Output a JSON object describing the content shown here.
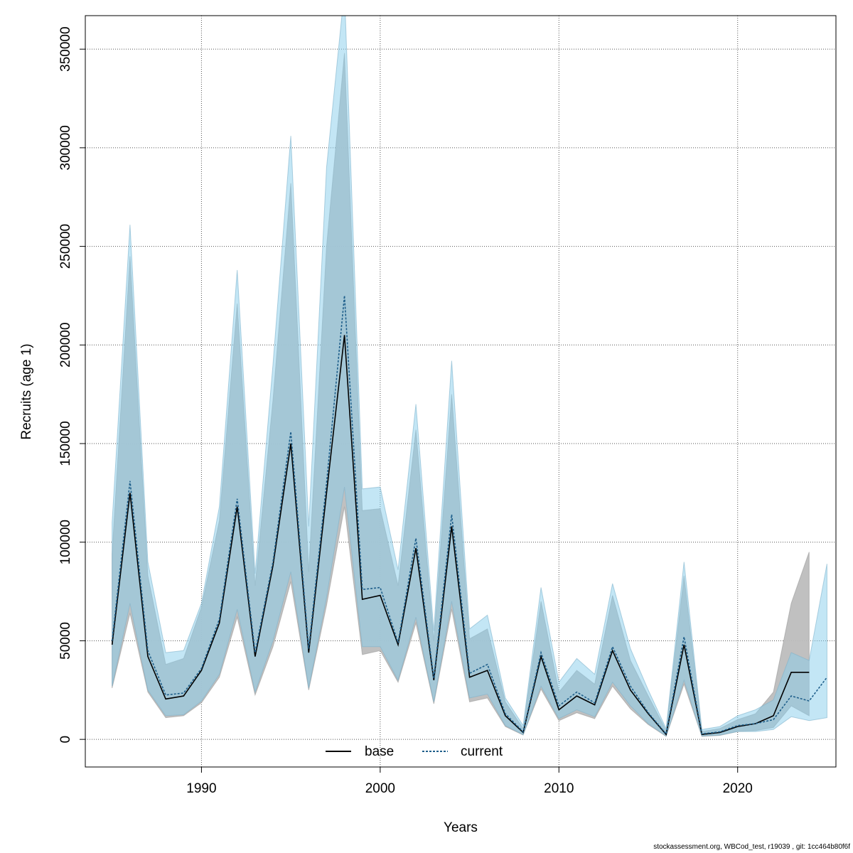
{
  "chart_data": {
    "type": "area",
    "title": "",
    "xlabel": "Years",
    "ylabel": "Recruits (age 1)",
    "xlim": [
      1983.5,
      2025.5
    ],
    "ylim": [
      -14000,
      367000
    ],
    "x_ticks": [
      1990,
      2000,
      2010,
      2020
    ],
    "y_ticks": [
      0,
      50000,
      100000,
      150000,
      200000,
      250000,
      300000,
      350000
    ],
    "grid": true,
    "legend_position": "bottom",
    "series": [
      {
        "name": "base",
        "line_style": "solid",
        "line_color": "#000000",
        "band_color": "#bdbdbd",
        "x": [
          1985,
          1986,
          1987,
          1988,
          1989,
          1990,
          1991,
          1992,
          1993,
          1994,
          1995,
          1996,
          1997,
          1998,
          1999,
          2000,
          2001,
          2002,
          2003,
          2004,
          2005,
          2006,
          2007,
          2008,
          2009,
          2010,
          2011,
          2012,
          2013,
          2014,
          2015,
          2016,
          2017,
          2018,
          2019,
          2020,
          2021,
          2022,
          2023,
          2024
        ],
        "values": [
          48000,
          125000,
          42000,
          20500,
          22000,
          35000,
          59000,
          118000,
          42000,
          88000,
          150000,
          44000,
          125000,
          205000,
          71000,
          73000,
          48000,
          97000,
          30000,
          108000,
          31500,
          35000,
          12000,
          3500,
          42000,
          15000,
          22000,
          17500,
          45000,
          25000,
          13000,
          2500,
          48000,
          2500,
          3500,
          6500,
          8000,
          12000,
          34000,
          34000
        ],
        "lower": [
          26000,
          64000,
          24000,
          11000,
          12000,
          18500,
          31500,
          62000,
          22500,
          47000,
          80000,
          25000,
          68000,
          118000,
          43000,
          45000,
          29000,
          59000,
          18000,
          66000,
          19000,
          21000,
          6500,
          2200,
          25500,
          9500,
          13500,
          10500,
          27000,
          15500,
          7500,
          1500,
          28000,
          1500,
          2000,
          4000,
          4500,
          6000,
          17000,
          12000
        ],
        "upper": [
          94000,
          245000,
          83000,
          38000,
          41000,
          67000,
          111000,
          221000,
          78000,
          172000,
          282000,
          85000,
          250000,
          348000,
          116000,
          117000,
          78000,
          157000,
          50000,
          175000,
          51000,
          56000,
          19000,
          5500,
          70000,
          24000,
          35000,
          28000,
          73000,
          40000,
          22000,
          4500,
          83000,
          4000,
          5500,
          10000,
          13000,
          24000,
          69000,
          95000
        ]
      },
      {
        "name": "current",
        "line_style": "dotted",
        "line_color": "#1f5f8b",
        "band_color": "#87ceeb",
        "x": [
          1985,
          1986,
          1987,
          1988,
          1989,
          1990,
          1991,
          1992,
          1993,
          1994,
          1995,
          1996,
          1997,
          1998,
          1999,
          2000,
          2001,
          2002,
          2003,
          2004,
          2005,
          2006,
          2007,
          2008,
          2009,
          2010,
          2011,
          2012,
          2013,
          2014,
          2015,
          2016,
          2017,
          2018,
          2019,
          2020,
          2021,
          2022,
          2023,
          2024,
          2025
        ],
        "values": [
          50000,
          131000,
          45000,
          22500,
          23500,
          36000,
          61000,
          122000,
          44000,
          90000,
          156000,
          46000,
          130000,
          225000,
          76000,
          77000,
          49000,
          102000,
          31000,
          114000,
          33500,
          38000,
          13000,
          3800,
          44000,
          17000,
          24000,
          18500,
          47000,
          27000,
          13500,
          2800,
          52000,
          2800,
          3800,
          7000,
          8000,
          10000,
          22000,
          19500,
          31500
        ],
        "lower": [
          27000,
          69000,
          25000,
          12000,
          12500,
          19500,
          33000,
          66000,
          24000,
          50000,
          85000,
          26000,
          72000,
          128000,
          47000,
          47000,
          30000,
          62000,
          19000,
          70000,
          21000,
          23000,
          7000,
          2400,
          27000,
          10500,
          15000,
          11500,
          29000,
          17000,
          8000,
          1700,
          30000,
          1700,
          2200,
          4000,
          4000,
          5000,
          11500,
          9500,
          11000
        ],
        "upper": [
          110000,
          261000,
          90000,
          44000,
          45000,
          69000,
          118000,
          238000,
          84000,
          190000,
          306000,
          108000,
          290000,
          380000,
          127000,
          128000,
          86000,
          170000,
          55000,
          192000,
          56000,
          63000,
          21000,
          7000,
          77000,
          29000,
          41000,
          33000,
          79000,
          46000,
          25000,
          5500,
          90000,
          5000,
          6500,
          12000,
          15000,
          20000,
          44000,
          40000,
          89000
        ]
      }
    ]
  },
  "footer": "stockassessment.org, WBCod_test, r19039 , git: 1cc464b80f6f"
}
